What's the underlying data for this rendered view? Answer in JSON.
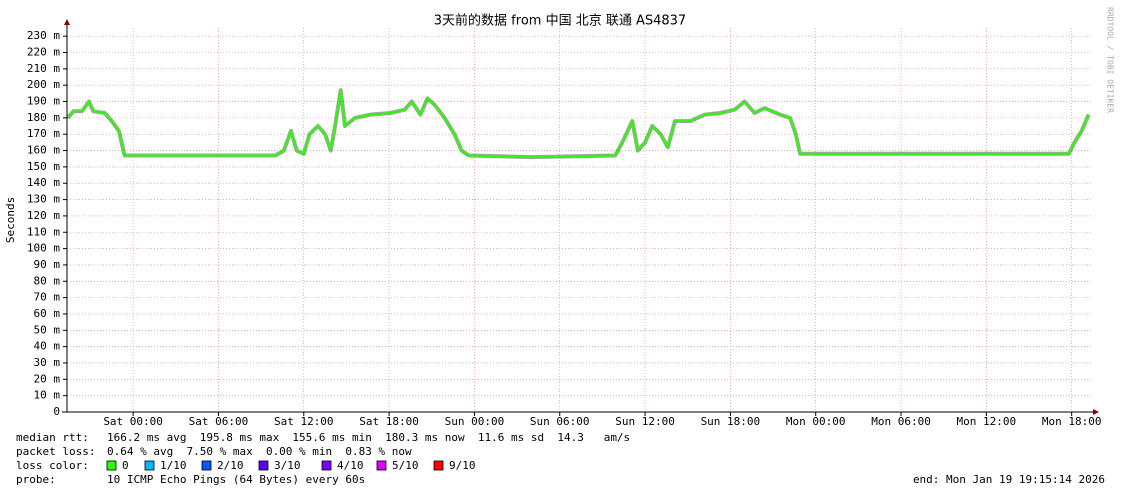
{
  "chart_data": {
    "type": "line",
    "title": "3天前的数据 from 中国 北京 联通 AS4837",
    "ylabel": "Seconds",
    "side_label": "RRDTOOL / TOBI OETIKER",
    "ylim": [
      0,
      0.235
    ],
    "yticks": [
      {
        "value": 0,
        "label": "0"
      },
      {
        "value": 0.01,
        "label": "10 m"
      },
      {
        "value": 0.02,
        "label": "20 m"
      },
      {
        "value": 0.03,
        "label": "30 m"
      },
      {
        "value": 0.04,
        "label": "40 m"
      },
      {
        "value": 0.05,
        "label": "50 m"
      },
      {
        "value": 0.06,
        "label": "60 m"
      },
      {
        "value": 0.07,
        "label": "70 m"
      },
      {
        "value": 0.08,
        "label": "80 m"
      },
      {
        "value": 0.09,
        "label": "90 m"
      },
      {
        "value": 0.1,
        "label": "100 m"
      },
      {
        "value": 0.11,
        "label": "110 m"
      },
      {
        "value": 0.12,
        "label": "120 m"
      },
      {
        "value": 0.13,
        "label": "130 m"
      },
      {
        "value": 0.14,
        "label": "140 m"
      },
      {
        "value": 0.15,
        "label": "150 m"
      },
      {
        "value": 0.16,
        "label": "160 m"
      },
      {
        "value": 0.17,
        "label": "170 m"
      },
      {
        "value": 0.18,
        "label": "180 m"
      },
      {
        "value": 0.19,
        "label": "190 m"
      },
      {
        "value": 0.2,
        "label": "200 m"
      },
      {
        "value": 0.21,
        "label": "210 m"
      },
      {
        "value": 0.22,
        "label": "220 m"
      },
      {
        "value": 0.23,
        "label": "230 m"
      }
    ],
    "xlim": [
      -4.65,
      67.5
    ],
    "xticks": [
      {
        "value": 0,
        "label": "Sat 00:00"
      },
      {
        "value": 6,
        "label": "Sat 06:00"
      },
      {
        "value": 12,
        "label": "Sat 12:00"
      },
      {
        "value": 18,
        "label": "Sat 18:00"
      },
      {
        "value": 24,
        "label": "Sun 00:00"
      },
      {
        "value": 30,
        "label": "Sun 06:00"
      },
      {
        "value": 36,
        "label": "Sun 12:00"
      },
      {
        "value": 42,
        "label": "Sun 18:00"
      },
      {
        "value": 48,
        "label": "Mon 00:00"
      },
      {
        "value": 54,
        "label": "Mon 06:00"
      },
      {
        "value": 60,
        "label": "Mon 12:00"
      },
      {
        "value": 66,
        "label": "Mon 18:00"
      }
    ],
    "grid": true,
    "x": [
      -4.6,
      -4.2,
      -3.6,
      -3.1,
      -2.8,
      -2.0,
      -1.5,
      -1.0,
      -0.6,
      0,
      5,
      10.0,
      10.6,
      11.1,
      11.5,
      12.0,
      12.4,
      13.0,
      13.5,
      13.9,
      14.2,
      14.6,
      14.9,
      15.6,
      16.7,
      18.1,
      19.1,
      19.6,
      20.2,
      20.7,
      21.2,
      21.9,
      22.6,
      23.1,
      23.6,
      28,
      33.9,
      34.4,
      35.1,
      35.5,
      36.0,
      36.5,
      37.1,
      37.6,
      38.1,
      39.2,
      40.2,
      41.3,
      42.3,
      43.0,
      43.7,
      44.4,
      45.5,
      46.2,
      46.6,
      46.9,
      52,
      58,
      62,
      65.8,
      66.2,
      66.7,
      67.2
    ],
    "series": [
      {
        "name": "median rtt",
        "color": "#26ff00",
        "values": [
          0.18,
          0.184,
          0.184,
          0.19,
          0.184,
          0.183,
          0.178,
          0.172,
          0.157,
          0.157,
          0.157,
          0.157,
          0.16,
          0.172,
          0.16,
          0.158,
          0.17,
          0.175,
          0.17,
          0.16,
          0.175,
          0.197,
          0.175,
          0.18,
          0.182,
          0.183,
          0.185,
          0.19,
          0.182,
          0.192,
          0.188,
          0.18,
          0.17,
          0.16,
          0.157,
          0.156,
          0.157,
          0.165,
          0.178,
          0.16,
          0.165,
          0.175,
          0.17,
          0.162,
          0.178,
          0.178,
          0.182,
          0.183,
          0.185,
          0.19,
          0.183,
          0.186,
          0.182,
          0.18,
          0.17,
          0.158,
          0.158,
          0.158,
          0.158,
          0.158,
          0.165,
          0.172,
          0.182
        ]
      }
    ],
    "stats": [
      {
        "label": "median rtt:",
        "text": "166.2 ms avg  195.8 ms max  155.6 ms min  180.3 ms now  11.6 ms sd  14.3   am/s"
      },
      {
        "label": "packet loss:",
        "text": "0.64 % avg  7.50 % max  0.00 % min  0.83 % now"
      }
    ],
    "loss_label": "loss color:",
    "loss_colors": [
      {
        "name": "0",
        "color": "#26ff00"
      },
      {
        "name": "1/10",
        "color": "#00b8ff"
      },
      {
        "name": "2/10",
        "color": "#0059ff"
      },
      {
        "name": "3/10",
        "color": "#5e00ff"
      },
      {
        "name": "4/10",
        "color": "#7e00ff"
      },
      {
        "name": "5/10",
        "color": "#dd00ff"
      },
      {
        "name": "9/10",
        "color": "#ff0000"
      }
    ],
    "probe_label": "probe:",
    "probe": "10 ICMP Echo Pings (64 Bytes) every 60s",
    "end": "end: Mon Jan 19 19:15:14 2026"
  }
}
